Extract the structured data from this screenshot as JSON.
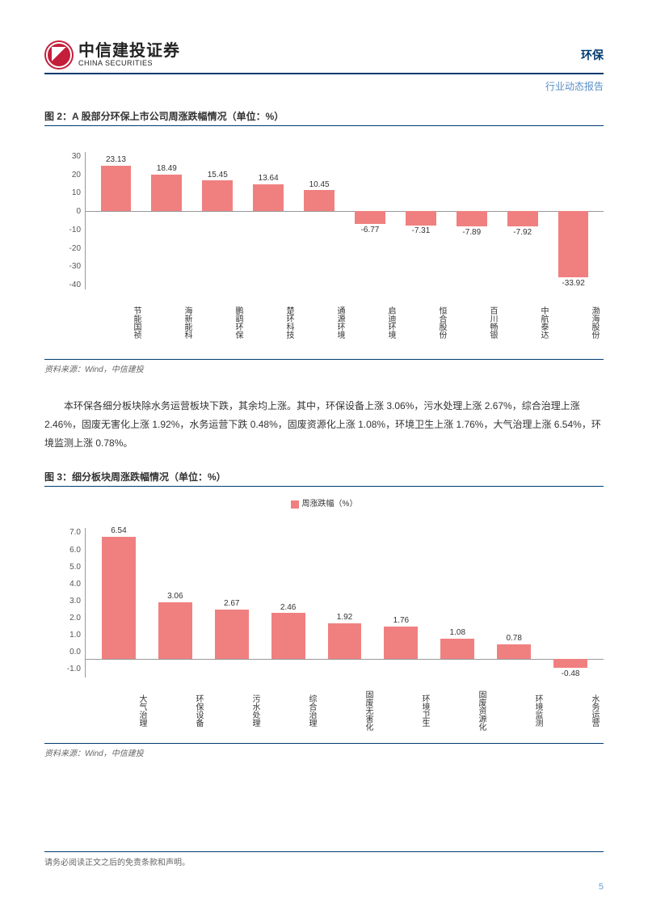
{
  "header": {
    "logo_cn": "中信建投证券",
    "logo_en": "CHINA SECURITIES",
    "sector": "环保",
    "subtitle": "行业动态报告"
  },
  "fig2": {
    "title": "图 2：A 股部分环保上市公司周涨跌幅情况（单位：%）",
    "type": "bar",
    "y_ticks": [
      "30",
      "20",
      "10",
      "0",
      "-10",
      "-20",
      "-30",
      "-40"
    ],
    "y_min": -40,
    "y_max": 30,
    "zero_frac_from_top": 0.4286,
    "bar_color": "#f08080",
    "categories": [
      "节能国祯",
      "海新能科",
      "鹏鹞环保",
      "楚环科技",
      "通源环境",
      "启迪环境",
      "恒合股份",
      "百川畅银",
      "中航泰达",
      "渤海股份"
    ],
    "values": [
      23.13,
      18.49,
      15.45,
      13.64,
      10.45,
      -6.77,
      -7.31,
      -7.89,
      -7.92,
      -33.92
    ],
    "source": "资料来源：Wind，中信建投"
  },
  "body": "本环保各细分板块除水务运营板块下跌，其余均上涨。其中，环保设备上涨 3.06%，污水处理上涨 2.67%，综合治理上涨 2.46%，固废无害化上涨 1.92%，水务运营下跌 0.48%，固废资源化上涨 1.08%，环境卫生上涨 1.76%，大气治理上涨 6.54%，环境监测上涨 0.78%。",
  "fig3": {
    "title": "图 3：细分板块周涨跌幅情况（单位：%）",
    "legend": "周涨跌幅（%）",
    "type": "bar",
    "y_ticks": [
      "7.0",
      "6.0",
      "5.0",
      "4.0",
      "3.0",
      "2.0",
      "1.0",
      "0.0",
      "-1.0"
    ],
    "y_min": -1.0,
    "y_max": 7.0,
    "zero_frac_from_top": 0.875,
    "bar_color": "#f08080",
    "categories": [
      "大气治理",
      "环保设备",
      "污水处理",
      "综合治理",
      "固废无害化",
      "环境卫生",
      "固废资源化",
      "环境监测",
      "水务运营"
    ],
    "values": [
      6.54,
      3.06,
      2.67,
      2.46,
      1.92,
      1.76,
      1.08,
      0.78,
      -0.48
    ],
    "source": "资料来源：Wind，中信建投"
  },
  "footer": {
    "disclaimer": "请务必阅读正文之后的免责条款和声明。",
    "page": "5"
  }
}
